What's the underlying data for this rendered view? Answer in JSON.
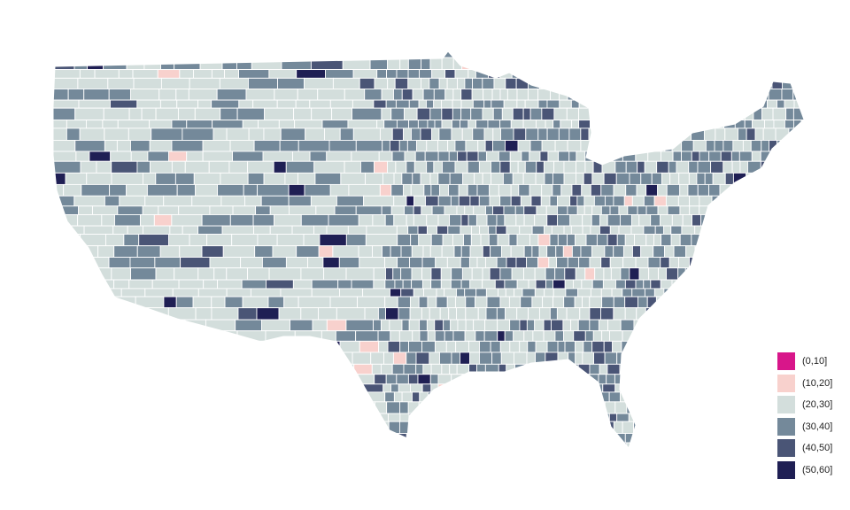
{
  "legend": {
    "items": [
      {
        "label": "(0,10]",
        "color": "#D8168A"
      },
      {
        "label": "(10,20]",
        "color": "#F8D1CD"
      },
      {
        "label": "(20,30]",
        "color": "#D3DEDC"
      },
      {
        "label": "(30,40]",
        "color": "#74899A"
      },
      {
        "label": "(40,50]",
        "color": "#4A5576"
      },
      {
        "label": "(50,60]",
        "color": "#1F1F54"
      }
    ]
  },
  "map": {
    "type": "choropleth",
    "region": "contiguous United States counties",
    "border_color": "#FFFFFF"
  }
}
